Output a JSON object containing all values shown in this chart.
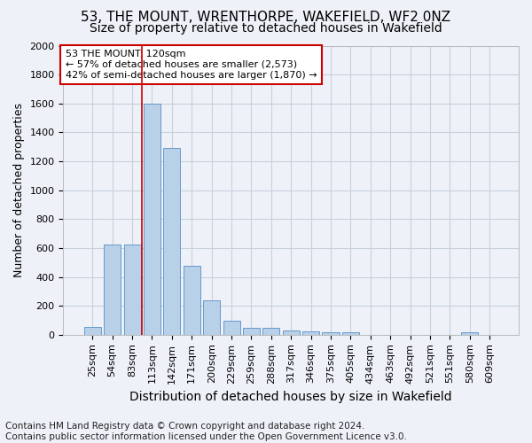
{
  "title": "53, THE MOUNT, WRENTHORPE, WAKEFIELD, WF2 0NZ",
  "subtitle": "Size of property relative to detached houses in Wakefield",
  "xlabel": "Distribution of detached houses by size in Wakefield",
  "ylabel": "Number of detached properties",
  "bar_labels": [
    "25sqm",
    "54sqm",
    "83sqm",
    "113sqm",
    "142sqm",
    "171sqm",
    "200sqm",
    "229sqm",
    "259sqm",
    "288sqm",
    "317sqm",
    "346sqm",
    "375sqm",
    "405sqm",
    "434sqm",
    "463sqm",
    "492sqm",
    "521sqm",
    "551sqm",
    "580sqm",
    "609sqm"
  ],
  "bar_values": [
    55,
    625,
    625,
    1600,
    1290,
    475,
    240,
    100,
    50,
    45,
    30,
    25,
    20,
    15,
    0,
    0,
    0,
    0,
    0,
    20,
    0
  ],
  "bar_color": "#b8d0e8",
  "bar_edge_color": "#6699cc",
  "vline_x": 2.5,
  "vline_color": "#cc0000",
  "annotation_line1": "53 THE MOUNT: 120sqm",
  "annotation_line2": "← 57% of detached houses are smaller (2,573)",
  "annotation_line3": "42% of semi-detached houses are larger (1,870) →",
  "annotation_box_facecolor": "#ffffff",
  "annotation_box_edgecolor": "#cc0000",
  "ylim": [
    0,
    2000
  ],
  "yticks": [
    0,
    200,
    400,
    600,
    800,
    1000,
    1200,
    1400,
    1600,
    1800,
    2000
  ],
  "footer_line1": "Contains HM Land Registry data © Crown copyright and database right 2024.",
  "footer_line2": "Contains public sector information licensed under the Open Government Licence v3.0.",
  "bg_color": "#eef2f8",
  "grid_color": "#c8d0dc",
  "title_fontsize": 11,
  "subtitle_fontsize": 10,
  "tick_fontsize": 8,
  "ylabel_fontsize": 9,
  "xlabel_fontsize": 10,
  "annot_fontsize": 8,
  "footer_fontsize": 7.5
}
